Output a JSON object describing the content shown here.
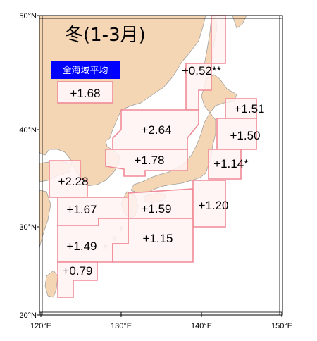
{
  "title": "冬(1-3月)",
  "badge": {
    "label": "全海域平均",
    "value": "+1.68",
    "color": "#0000ff"
  },
  "colors": {
    "land": "#f5d6b4",
    "sea": "#ffffff",
    "box_fill": "#fff3f3",
    "box_stroke": "#f08a96",
    "coast": "#999999"
  },
  "axes": {
    "lat_labels": [
      "50°N",
      "40°N",
      "30°N",
      "20°N"
    ],
    "lon_labels": [
      "120°E",
      "130°E",
      "140°E",
      "150°E"
    ]
  },
  "regions": [
    {
      "id": "okhotsk",
      "label": "+0.52**"
    },
    {
      "id": "e-hokkaido",
      "label": "+1.51"
    },
    {
      "id": "n-japan-sea",
      "label": "+2.64"
    },
    {
      "id": "sanriku",
      "label": "+1.50"
    },
    {
      "id": "s-japan-sea",
      "label": "+1.78"
    },
    {
      "id": "kanto-east",
      "label": "+1.14*"
    },
    {
      "id": "yellow-sea",
      "label": "+2.28"
    },
    {
      "id": "e-china-sea-n",
      "label": "+1.67"
    },
    {
      "id": "shikoku-south",
      "label": "+1.59"
    },
    {
      "id": "kanto-south",
      "label": "+1.20"
    },
    {
      "id": "e-china-sea-s",
      "label": "+1.49"
    },
    {
      "id": "okinawa-east",
      "label": "+1.15"
    },
    {
      "id": "taiwan-east",
      "label": "+0.79"
    }
  ]
}
